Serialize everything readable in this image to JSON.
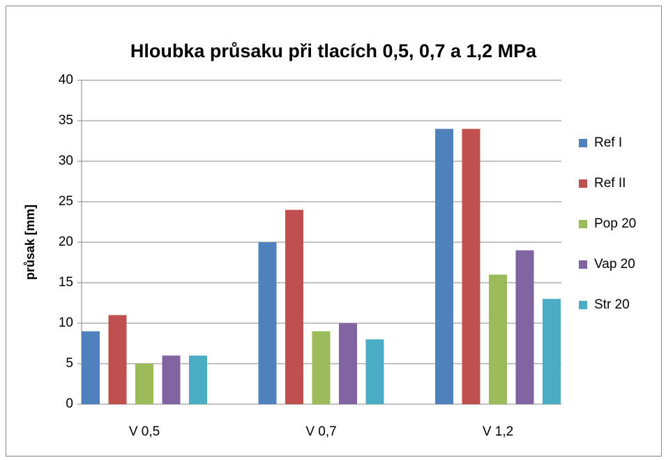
{
  "chart_data": {
    "type": "bar",
    "title": "Hloubka průsaku při tlacích 0,5, 0,7 a 1,2 MPa",
    "ylabel": "průsak [mm]",
    "categories": [
      "V 0,5",
      "V 0,7",
      "V 1,2"
    ],
    "series": [
      {
        "name": "Ref I",
        "color": "#4f81bd",
        "values": [
          9,
          20,
          34
        ]
      },
      {
        "name": "Ref II",
        "color": "#c0504d",
        "values": [
          11,
          24,
          34
        ]
      },
      {
        "name": "Pop 20",
        "color": "#9bbb59",
        "values": [
          5,
          9,
          16
        ]
      },
      {
        "name": "Vap 20",
        "color": "#8064a2",
        "values": [
          6,
          10,
          19
        ]
      },
      {
        "name": "Str 20",
        "color": "#4bacc6",
        "values": [
          6,
          8,
          13
        ]
      }
    ],
    "ylim": [
      0,
      40
    ],
    "yticks": [
      0,
      5,
      10,
      15,
      20,
      25,
      30,
      35,
      40
    ],
    "grid": true,
    "legend": "right"
  }
}
